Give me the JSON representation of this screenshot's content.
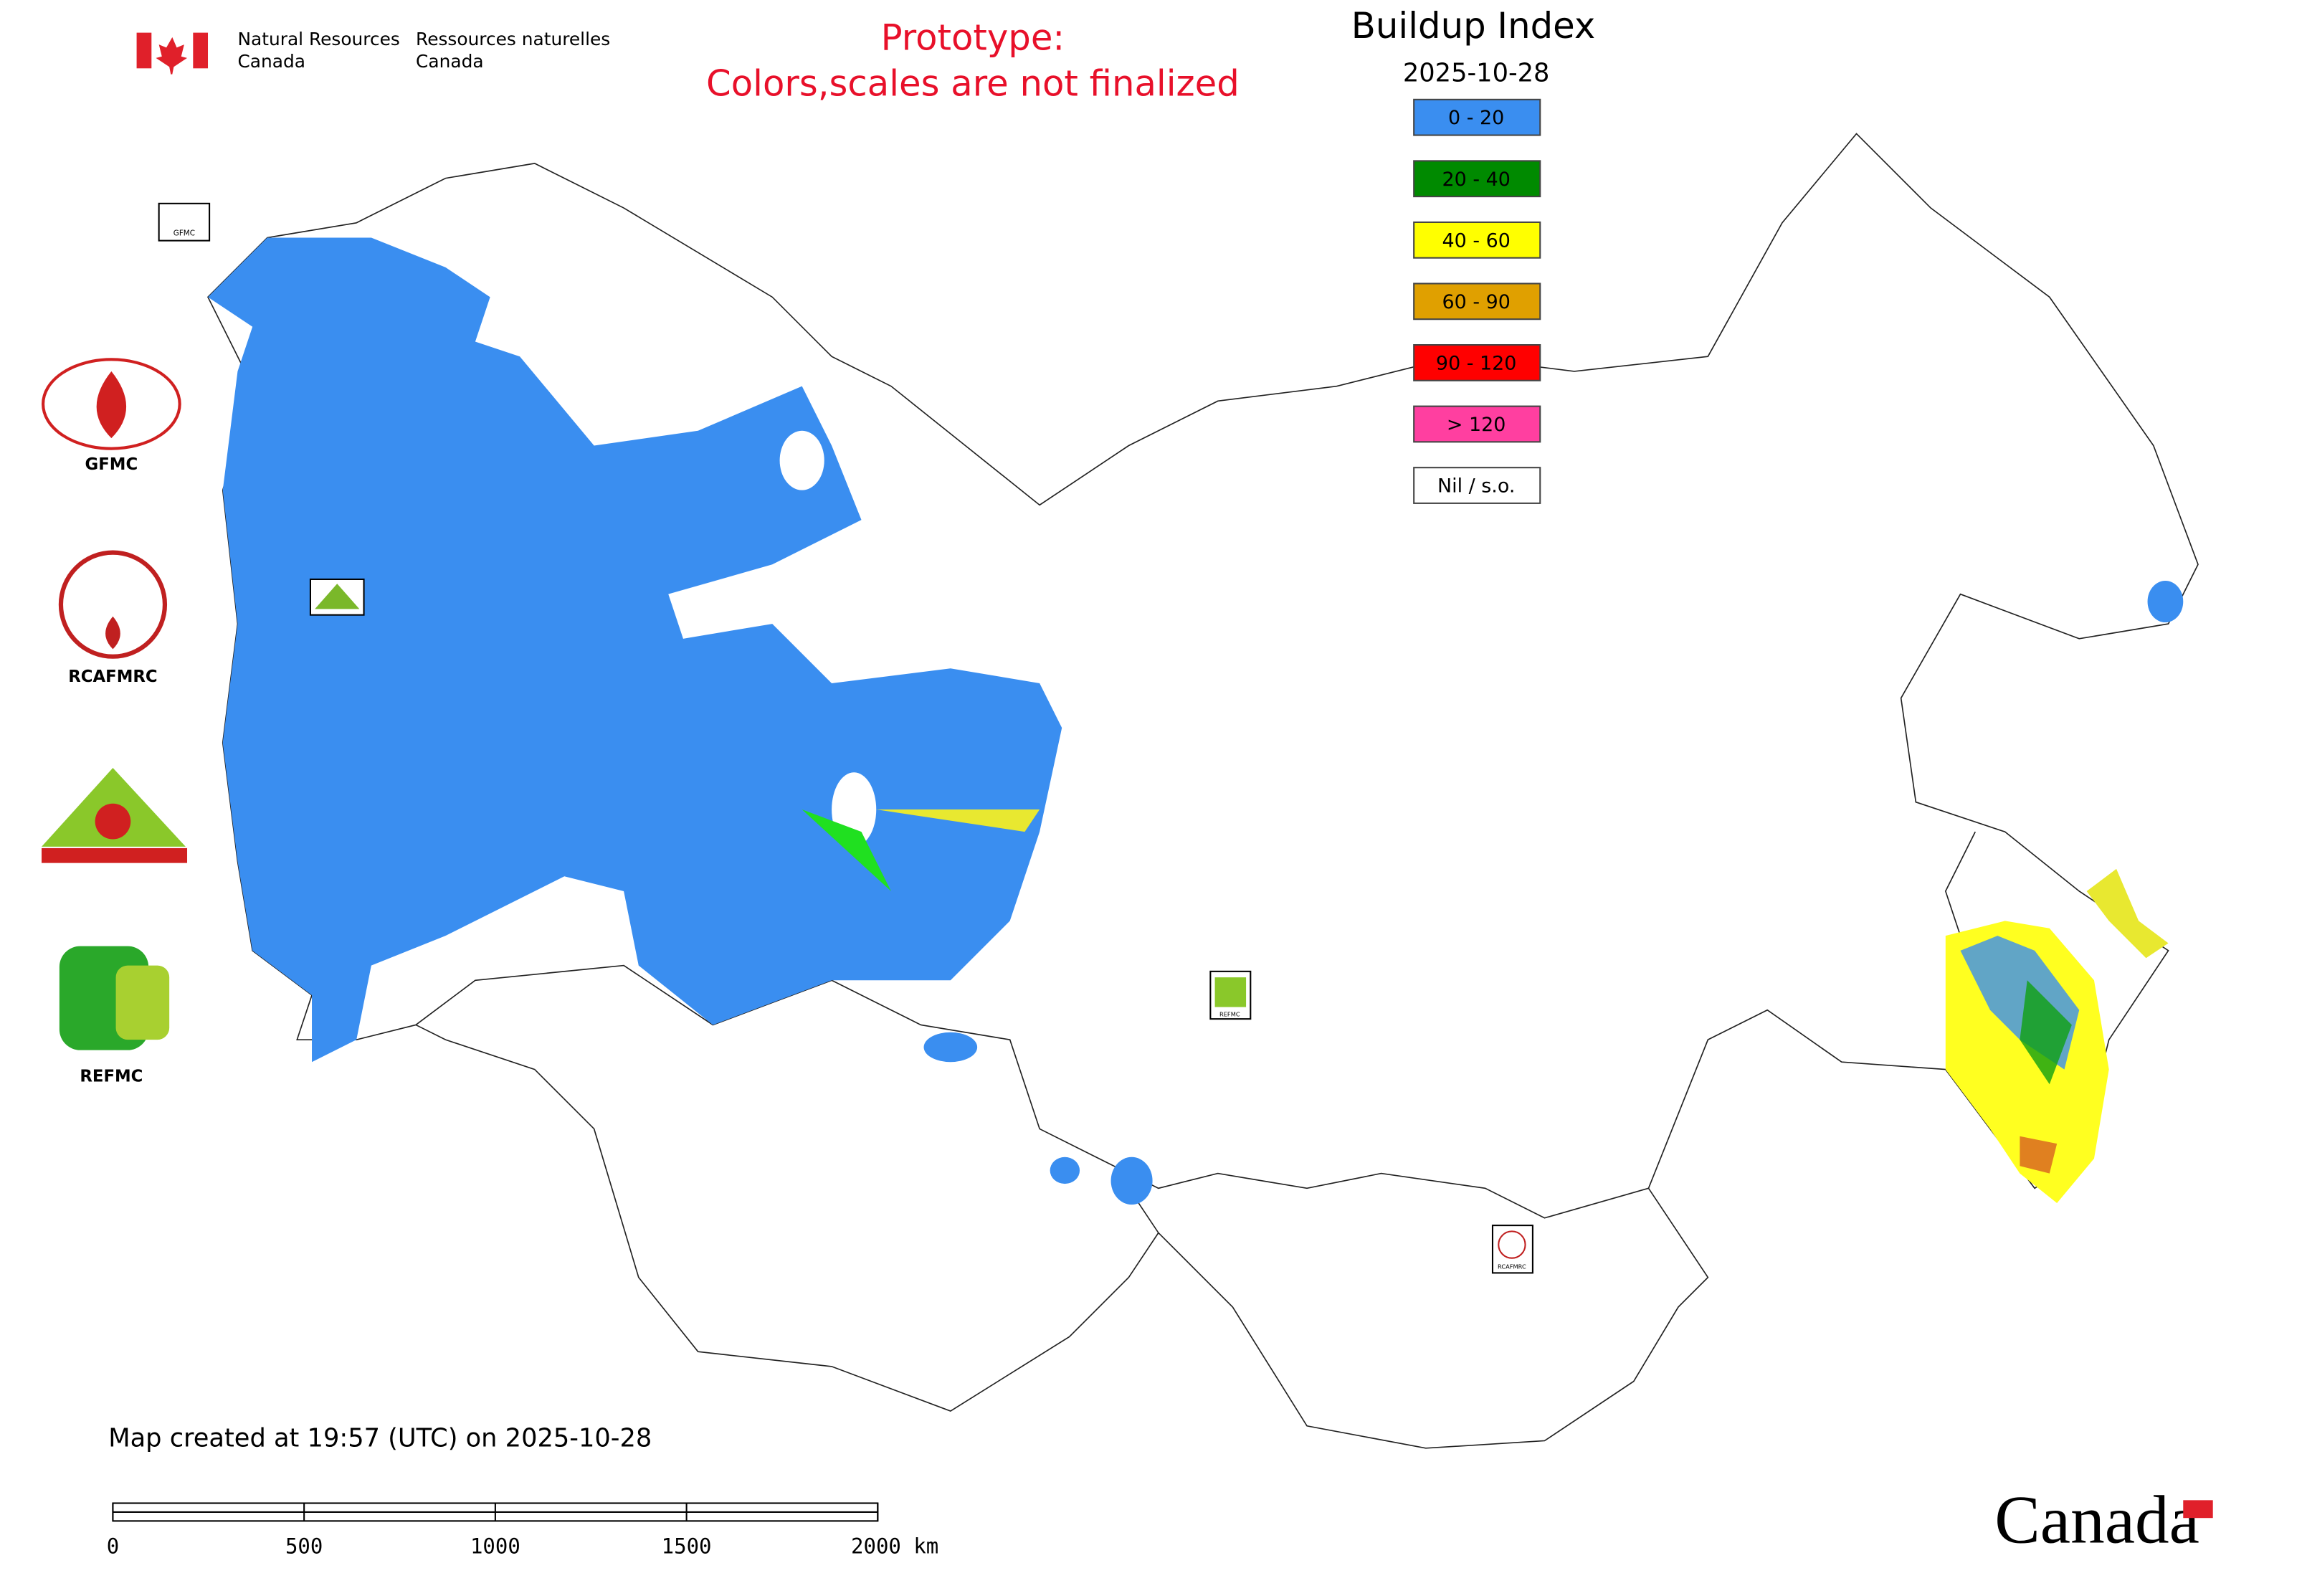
{
  "header": {
    "org_en": [
      "Natural Resources",
      "Canada"
    ],
    "org_fr": [
      "Ressources naturelles",
      "Canada"
    ],
    "prototype": [
      "Prototype:",
      "Colors,scales are not finalized"
    ]
  },
  "legend": {
    "title": "Buildup Index",
    "date": "2025-10-28",
    "items": [
      {
        "label": "0 - 20",
        "color": "#3a8ef0"
      },
      {
        "label": "20 - 40",
        "color": "#008a00"
      },
      {
        "label": "40 - 60",
        "color": "#ffff00"
      },
      {
        "label": "60 - 90",
        "color": "#e0a000"
      },
      {
        "label": "90 - 120",
        "color": "#ff0000"
      },
      {
        "label": "> 120",
        "color": "#ff3fa0"
      },
      {
        "label": "Nil / s.o.",
        "color": "#ffffff"
      }
    ]
  },
  "logos": [
    "GFMC",
    "RCAFMRC",
    "REFMC"
  ],
  "map_labels": {
    "small_gfmc": "GFMC",
    "small_refmc": "REFMC",
    "small_rcafmrc": "RCAFMRC"
  },
  "footer": {
    "created": "Map created at 19:57 (UTC) on 2025-10-28",
    "scale_labels": [
      "0",
      "500",
      "1000",
      "1500",
      "2000 km"
    ],
    "wordmark": "Canada"
  }
}
